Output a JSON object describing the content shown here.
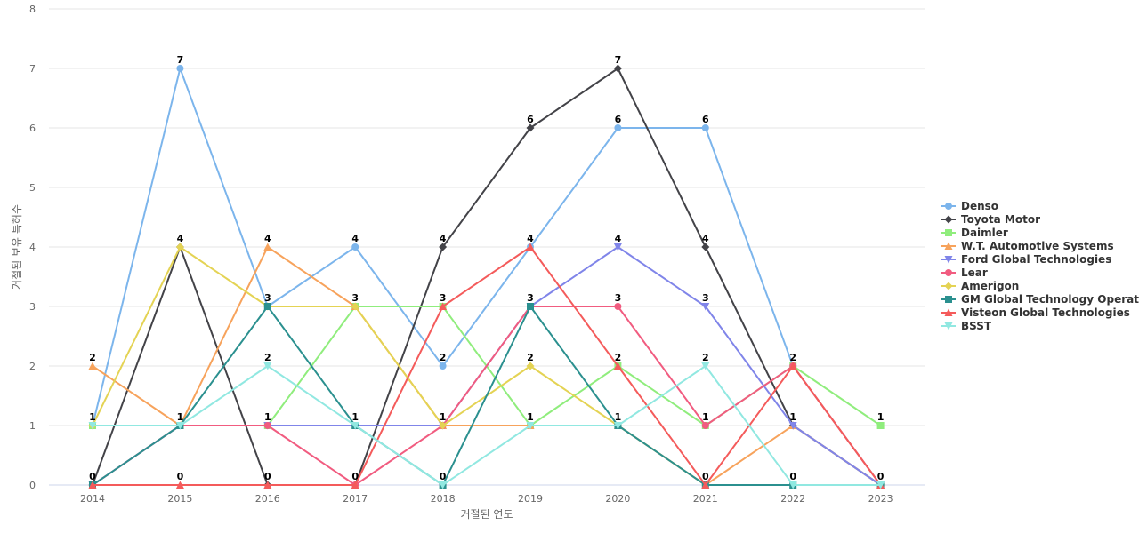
{
  "chart_data": {
    "type": "line",
    "x": [
      "2014",
      "2015",
      "2016",
      "2017",
      "2018",
      "2019",
      "2020",
      "2021",
      "2022",
      "2023"
    ],
    "xlabel": "거절된 연도",
    "ylabel": "거절된 보유 특허수",
    "ylim": [
      0,
      8
    ],
    "yticks": [
      "0",
      "1",
      "2",
      "3",
      "4",
      "5",
      "6",
      "7",
      "8"
    ],
    "grid": true,
    "legend_position": "right",
    "series": [
      {
        "name": "Denso",
        "color": "#7cb5ec",
        "marker": "circle",
        "values": [
          1,
          7,
          3,
          4,
          2,
          4,
          6,
          6,
          2,
          0
        ]
      },
      {
        "name": "Toyota Motor",
        "color": "#434348",
        "marker": "diamond",
        "values": [
          0,
          4,
          0,
          0,
          4,
          6,
          7,
          4,
          1,
          0
        ]
      },
      {
        "name": "Daimler",
        "color": "#90ed7d",
        "marker": "square",
        "values": [
          1,
          1,
          1,
          3,
          3,
          1,
          2,
          1,
          2,
          1
        ]
      },
      {
        "name": "W.T. Automotive Systems",
        "color": "#f7a35c",
        "marker": "triangle",
        "values": [
          2,
          1,
          4,
          3,
          1,
          1,
          1,
          0,
          1,
          0
        ]
      },
      {
        "name": "Ford Global Technologies",
        "color": "#8085e9",
        "marker": "triangle-down",
        "values": [
          0,
          1,
          1,
          1,
          1,
          3,
          4,
          3,
          1,
          0
        ]
      },
      {
        "name": "Lear",
        "color": "#f15c80",
        "marker": "circle",
        "values": [
          0,
          1,
          1,
          0,
          1,
          3,
          3,
          1,
          2,
          0
        ]
      },
      {
        "name": "Amerigon",
        "color": "#e4d354",
        "marker": "diamond",
        "values": [
          1,
          4,
          3,
          3,
          1,
          2,
          1,
          0,
          0,
          0
        ]
      },
      {
        "name": "GM Global Technology Operat...",
        "color": "#2b908f",
        "marker": "square",
        "values": [
          0,
          1,
          3,
          1,
          0,
          3,
          1,
          0,
          0,
          0
        ]
      },
      {
        "name": "Visteon Global Technologies",
        "color": "#f45b5b",
        "marker": "triangle",
        "values": [
          0,
          0,
          0,
          0,
          3,
          4,
          2,
          0,
          2,
          0
        ]
      },
      {
        "name": "BSST",
        "color": "#91e8e1",
        "marker": "triangle-down",
        "values": [
          1,
          1,
          2,
          1,
          0,
          1,
          1,
          2,
          0,
          0
        ]
      }
    ],
    "data_labels": [
      {
        "x": "2014",
        "y": 2,
        "text": "2"
      },
      {
        "x": "2014",
        "y": 1,
        "text": "1"
      },
      {
        "x": "2014",
        "y": 0,
        "text": "0"
      },
      {
        "x": "2015",
        "y": 7,
        "text": "7"
      },
      {
        "x": "2015",
        "y": 4,
        "text": "4"
      },
      {
        "x": "2015",
        "y": 1,
        "text": "1"
      },
      {
        "x": "2015",
        "y": 0,
        "text": "0"
      },
      {
        "x": "2016",
        "y": 4,
        "text": "4"
      },
      {
        "x": "2016",
        "y": 3,
        "text": "3"
      },
      {
        "x": "2016",
        "y": 2,
        "text": "2"
      },
      {
        "x": "2016",
        "y": 1,
        "text": "1"
      },
      {
        "x": "2016",
        "y": 0,
        "text": "0"
      },
      {
        "x": "2017",
        "y": 4,
        "text": "4"
      },
      {
        "x": "2017",
        "y": 3,
        "text": "3"
      },
      {
        "x": "2017",
        "y": 1,
        "text": "1"
      },
      {
        "x": "2017",
        "y": 0,
        "text": "0"
      },
      {
        "x": "2018",
        "y": 4,
        "text": "4"
      },
      {
        "x": "2018",
        "y": 3,
        "text": "3"
      },
      {
        "x": "2018",
        "y": 2,
        "text": "2"
      },
      {
        "x": "2018",
        "y": 1,
        "text": "1"
      },
      {
        "x": "2018",
        "y": 0,
        "text": "0"
      },
      {
        "x": "2019",
        "y": 6,
        "text": "6"
      },
      {
        "x": "2019",
        "y": 4,
        "text": "4"
      },
      {
        "x": "2019",
        "y": 3,
        "text": "3"
      },
      {
        "x": "2019",
        "y": 2,
        "text": "2"
      },
      {
        "x": "2019",
        "y": 1,
        "text": "1"
      },
      {
        "x": "2020",
        "y": 7,
        "text": "7"
      },
      {
        "x": "2020",
        "y": 6,
        "text": "6"
      },
      {
        "x": "2020",
        "y": 4,
        "text": "4"
      },
      {
        "x": "2020",
        "y": 3,
        "text": "3"
      },
      {
        "x": "2020",
        "y": 2,
        "text": "2"
      },
      {
        "x": "2020",
        "y": 1,
        "text": "1"
      },
      {
        "x": "2021",
        "y": 6,
        "text": "6"
      },
      {
        "x": "2021",
        "y": 4,
        "text": "4"
      },
      {
        "x": "2021",
        "y": 3,
        "text": "3"
      },
      {
        "x": "2021",
        "y": 2,
        "text": "2"
      },
      {
        "x": "2021",
        "y": 1,
        "text": "1"
      },
      {
        "x": "2021",
        "y": 0,
        "text": "0"
      },
      {
        "x": "2022",
        "y": 2,
        "text": "2"
      },
      {
        "x": "2022",
        "y": 1,
        "text": "1"
      },
      {
        "x": "2022",
        "y": 0,
        "text": "0"
      },
      {
        "x": "2023",
        "y": 1,
        "text": "1"
      },
      {
        "x": "2023",
        "y": 0,
        "text": "0"
      }
    ]
  }
}
